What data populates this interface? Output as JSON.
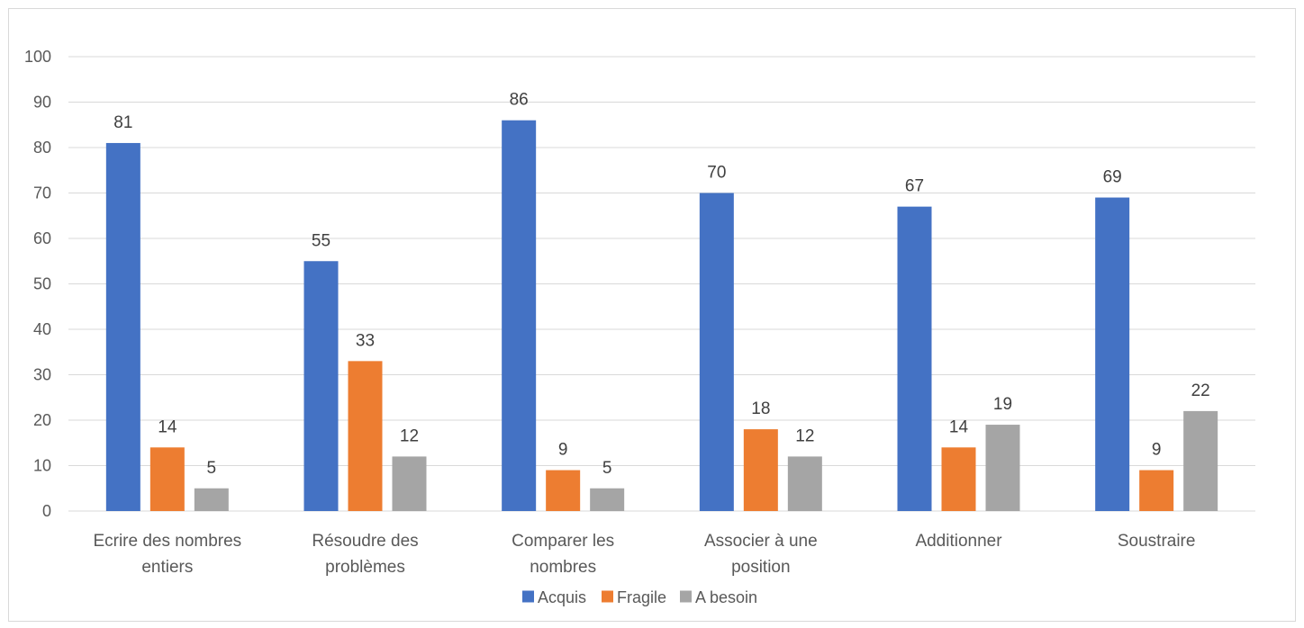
{
  "chart_data": {
    "type": "bar",
    "title": "",
    "xlabel": "",
    "ylabel": "",
    "ylim": [
      0,
      100
    ],
    "y_ticks": [
      0,
      10,
      20,
      30,
      40,
      50,
      60,
      70,
      80,
      90,
      100
    ],
    "grid": true,
    "legend_position": "bottom",
    "categories": [
      [
        "Ecrire des nombres",
        "entiers"
      ],
      [
        "Résoudre des",
        "problèmes"
      ],
      [
        "Comparer les",
        "nombres"
      ],
      [
        "Associer à une",
        "position"
      ],
      [
        "Additionner"
      ],
      [
        "Soustraire"
      ]
    ],
    "series": [
      {
        "name": "Acquis",
        "color": "#4472C4",
        "values": [
          81,
          55,
          86,
          70,
          67,
          69
        ]
      },
      {
        "name": "Fragile",
        "color": "#ED7D31",
        "values": [
          14,
          33,
          9,
          18,
          14,
          9
        ]
      },
      {
        "name": "A besoin",
        "color": "#A5A5A5",
        "values": [
          5,
          12,
          5,
          12,
          19,
          22
        ]
      }
    ],
    "data_labels": true
  }
}
